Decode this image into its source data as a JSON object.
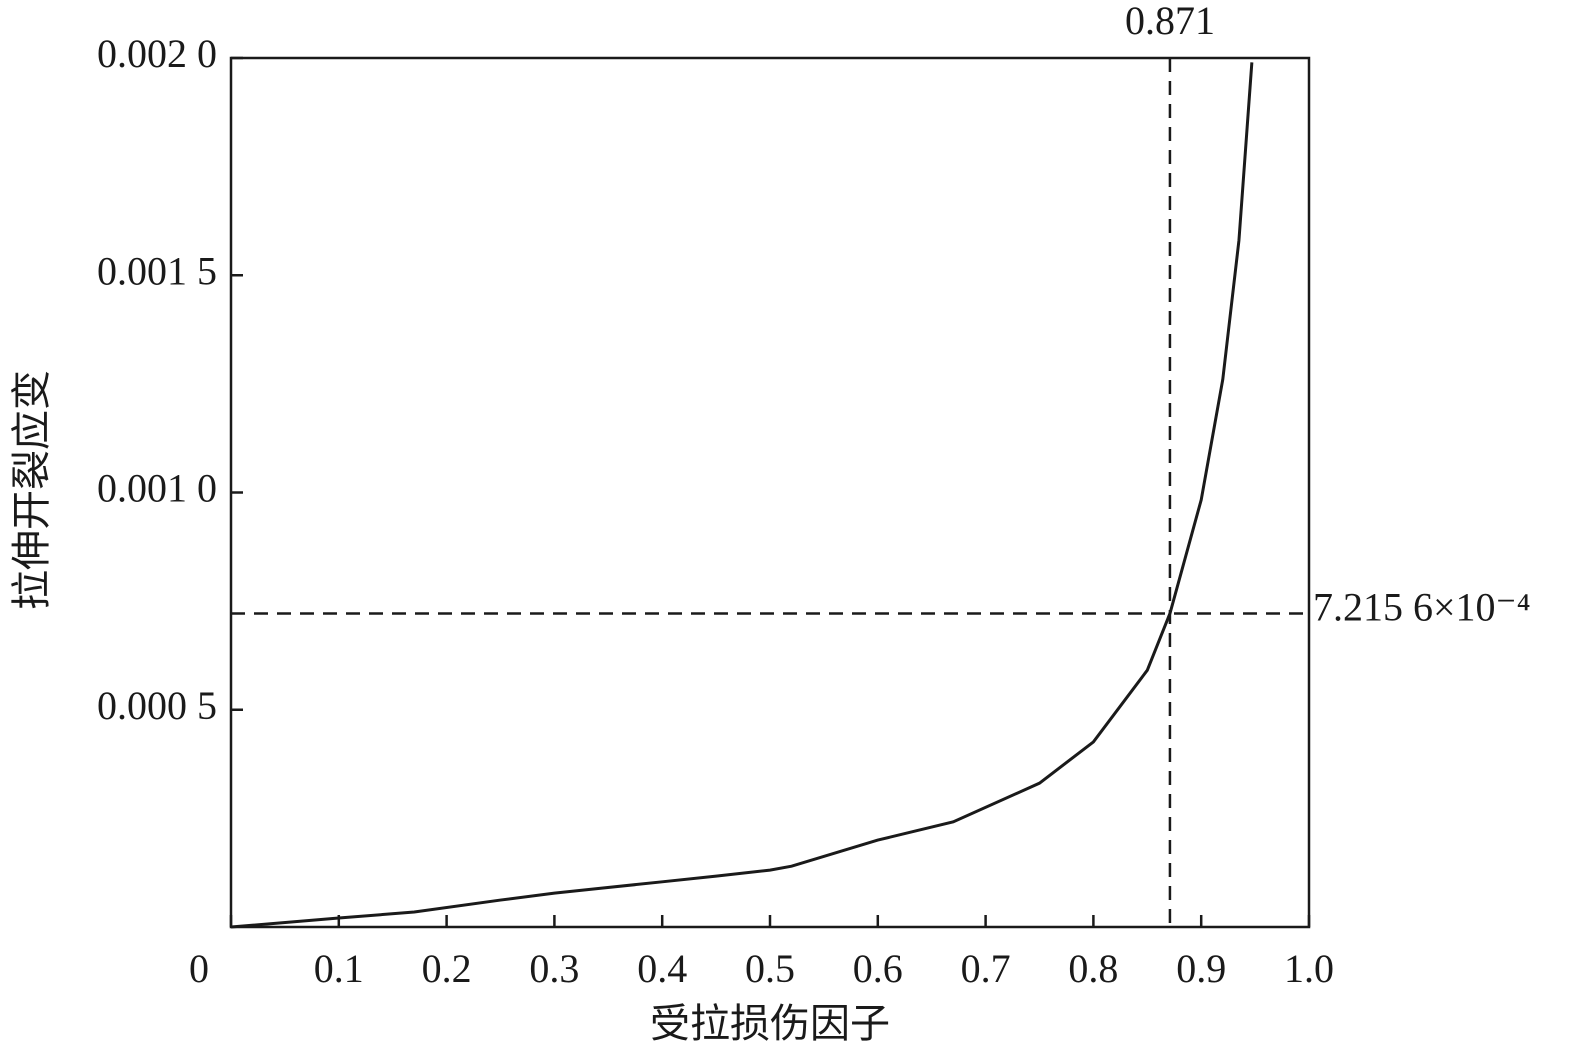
{
  "chart_data": {
    "type": "line",
    "x_label": "受拉损伤因子",
    "y_label": "拉伸开裂应变",
    "x": [
      0,
      0.1,
      0.17,
      0.25,
      0.3,
      0.4,
      0.45,
      0.5,
      0.52,
      0.6,
      0.67,
      0.75,
      0.8,
      0.85,
      0.871,
      0.9,
      0.92,
      0.935,
      0.947
    ],
    "values": [
      0,
      2.07e-05,
      3.45e-05,
      6.2e-05,
      7.8e-05,
      0.000104,
      0.000117,
      0.000131,
      0.00014,
      0.0002,
      0.000242,
      0.000331,
      0.000426,
      0.000591,
      0.00072156,
      0.000983,
      0.00126,
      0.00158,
      0.00199
    ],
    "color": "#1a1a1a",
    "xlim": [
      0,
      1
    ],
    "ylim": [
      0,
      0.002
    ],
    "xticks": [
      0,
      0.1,
      0.2,
      0.3,
      0.4,
      0.5,
      0.6,
      0.7,
      0.8,
      0.9,
      {
        "value": 1,
        "label": "1.0"
      }
    ],
    "yticks": [
      {
        "value": 0.0005,
        "label": "0.000 5"
      },
      {
        "value": 0.001,
        "label": "0.001 0"
      },
      {
        "value": 0.0015,
        "label": "0.001 5"
      },
      {
        "value": 0.002,
        "label": "0.002 0"
      }
    ],
    "annotations": [
      {
        "x": 0.871,
        "label": "0.871"
      },
      {
        "y": 0.00072156,
        "label": "7.215 6×10⁻⁴"
      }
    ],
    "grid": false
  }
}
